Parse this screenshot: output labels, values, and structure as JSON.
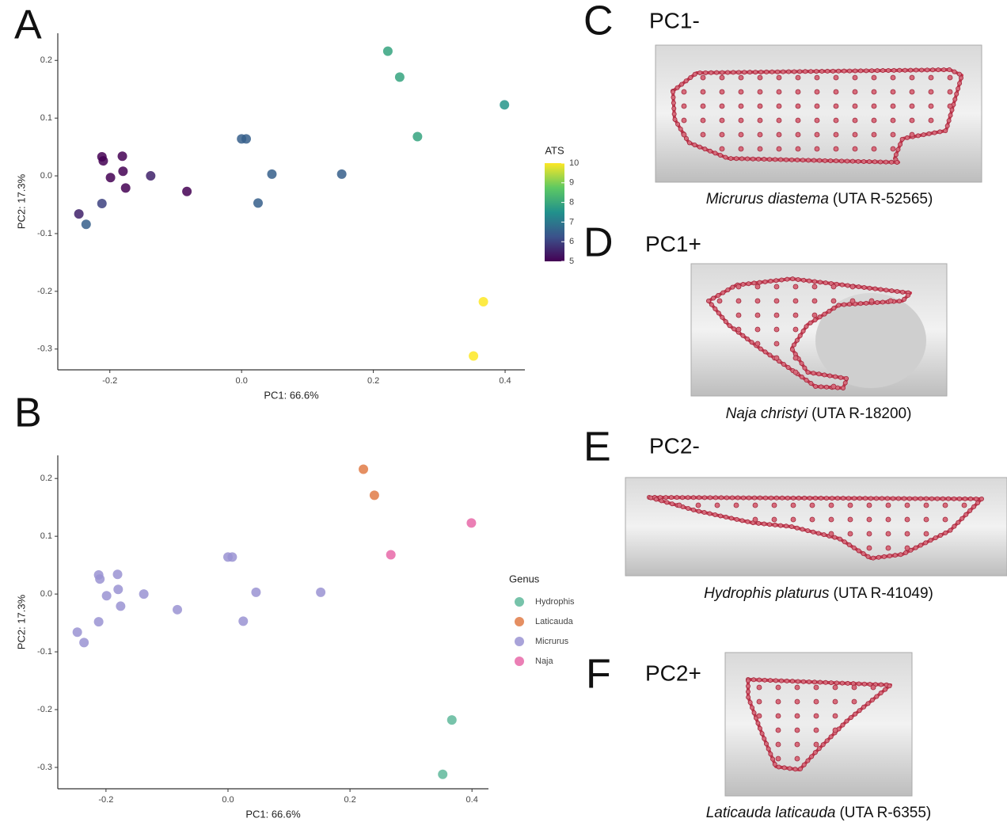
{
  "chart_data": [
    {
      "type": "scatter",
      "panel": "A",
      "xlabel": "PC1: 66.6%",
      "ylabel": "PC2: 17.3%",
      "x": [
        0.222,
        0.24,
        0.399,
        0.267,
        0.0,
        0.007,
        0.046,
        0.152,
        0.025,
        -0.212,
        -0.21,
        -0.181,
        -0.18,
        -0.199,
        -0.176,
        -0.138,
        -0.083,
        -0.212,
        -0.247,
        -0.236,
        0.367,
        0.352
      ],
      "values": [
        0.216,
        0.171,
        0.123,
        0.068,
        0.064,
        0.064,
        0.003,
        0.003,
        -0.047,
        0.033,
        0.026,
        0.034,
        0.008,
        -0.003,
        -0.021,
        0.0,
        -0.027,
        -0.048,
        -0.066,
        -0.084,
        -0.218,
        -0.312
      ],
      "color_values": [
        7.9,
        7.9,
        7.6,
        7.9,
        6.5,
        6.5,
        6.5,
        6.5,
        6.5,
        5.0,
        5.0,
        5.0,
        5.0,
        5.0,
        5.0,
        5.5,
        5.0,
        6.0,
        5.5,
        6.5,
        10.0,
        10.0
      ],
      "colorbar": {
        "title": "ATS",
        "lim": [
          5,
          10
        ],
        "ticks": [
          5,
          6,
          7,
          8,
          9,
          10
        ],
        "colors": [
          "#440154",
          "#3b528b",
          "#21918c",
          "#5ec962",
          "#fde725"
        ]
      },
      "xlim": [
        -0.279,
        0.43
      ],
      "ylim": [
        -0.336,
        0.247
      ],
      "xticks": [
        -0.2,
        {
          "value": 0,
          "label": "0.0"
        },
        0.2,
        0.4
      ],
      "yticks": [
        -0.3,
        -0.2,
        -0.1,
        {
          "value": 0,
          "label": "0.0"
        },
        0.1,
        0.2
      ]
    },
    {
      "type": "scatter",
      "panel": "B",
      "xlabel": "PC1: 66.6%",
      "ylabel": "PC2: 17.3%",
      "legend_title": "Genus",
      "series": [
        {
          "name": "Hydrophis",
          "color": "#5fb89b",
          "x": [
            0.367,
            0.352
          ],
          "values": [
            -0.218,
            -0.312
          ]
        },
        {
          "name": "Laticauda",
          "color": "#e07b47",
          "x": [
            0.222,
            0.24
          ],
          "values": [
            0.216,
            0.171
          ]
        },
        {
          "name": "Micrurus",
          "color": "#9a93d2",
          "x": [
            0.0,
            0.007,
            0.046,
            0.152,
            0.025,
            -0.212,
            -0.21,
            -0.181,
            -0.18,
            -0.199,
            -0.176,
            -0.138,
            -0.083,
            -0.212,
            -0.247,
            -0.236
          ],
          "values": [
            0.064,
            0.064,
            0.003,
            0.003,
            -0.047,
            0.033,
            0.026,
            0.034,
            0.008,
            -0.003,
            -0.021,
            0.0,
            -0.027,
            -0.048,
            -0.066,
            -0.084
          ]
        },
        {
          "name": "Naja",
          "color": "#e868a8",
          "x": [
            0.399,
            0.267
          ],
          "values": [
            0.123,
            0.068
          ]
        }
      ],
      "xlim": [
        -0.279,
        0.427
      ],
      "ylim": [
        -0.337,
        0.24
      ],
      "xticks": [
        -0.2,
        {
          "value": 0,
          "label": "0.0"
        },
        0.2,
        0.4
      ],
      "yticks": [
        -0.3,
        -0.2,
        -0.1,
        {
          "value": 0,
          "label": "0.0"
        },
        0.1,
        0.2
      ]
    }
  ],
  "panels": [
    {
      "letter": "C",
      "label": "PC1-",
      "species": "Micrurus diastema",
      "specimen": "(UTA R-52565)"
    },
    {
      "letter": "D",
      "label": "PC1+",
      "species": "Naja christyi",
      "specimen": "(UTA R-18200)"
    },
    {
      "letter": "E",
      "label": "PC2-",
      "species": "Hydrophis platurus",
      "specimen": "(UTA R-41049)"
    },
    {
      "letter": "F",
      "label": "PC2+",
      "species": "Laticauda laticauda",
      "specimen": "(UTA R-6355)"
    }
  ]
}
